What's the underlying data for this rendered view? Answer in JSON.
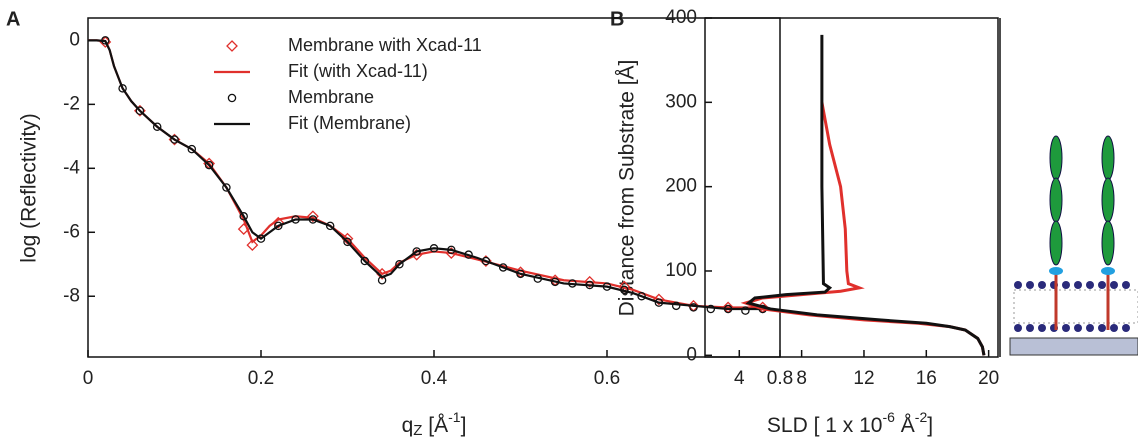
{
  "chart_data": [
    {
      "type": "line",
      "panel": "A",
      "ylabel": "log (Reflectivity)",
      "xlabel": {
        "text": "q",
        "sub": "Z",
        "unit": " [Å",
        "sup": "-1",
        "end": "]"
      },
      "xlim": [
        0,
        0.8
      ],
      "xticks": [
        0,
        0.2,
        0.4,
        0.6,
        0.8
      ],
      "ylim": [
        -9.9,
        0.7
      ],
      "yticks": [
        0,
        -2,
        -4,
        -6,
        -8
      ],
      "legend": "upper right",
      "series": [
        {
          "name": "Membrane with Xcad-11",
          "color": "#e0302c",
          "style": "markers",
          "marker": "diamond",
          "x": [
            0.02,
            0.06,
            0.1,
            0.14,
            0.18,
            0.19,
            0.22,
            0.26,
            0.3,
            0.34,
            0.38,
            0.42,
            0.46,
            0.5,
            0.54,
            0.58,
            0.62,
            0.66,
            0.7,
            0.74,
            0.78
          ],
          "values": [
            -0.05,
            -2.2,
            -3.1,
            -3.85,
            -5.9,
            -6.4,
            -5.7,
            -5.5,
            -6.2,
            -7.3,
            -6.7,
            -6.65,
            -6.9,
            -7.25,
            -7.5,
            -7.55,
            -7.7,
            -8.1,
            -8.3,
            -8.35,
            -8.35
          ]
        },
        {
          "name": "Fit (with Xcad-11)",
          "color": "#e0302c",
          "style": "line",
          "x": [
            0,
            0.01,
            0.02,
            0.025,
            0.03,
            0.04,
            0.05,
            0.06,
            0.08,
            0.1,
            0.12,
            0.14,
            0.16,
            0.18,
            0.19,
            0.2,
            0.21,
            0.22,
            0.24,
            0.26,
            0.28,
            0.3,
            0.32,
            0.34,
            0.35,
            0.36,
            0.38,
            0.4,
            0.42,
            0.45,
            0.5,
            0.55,
            0.6,
            0.63,
            0.66,
            0.7,
            0.74,
            0.78
          ],
          "values": [
            0,
            0,
            -0.02,
            -0.3,
            -0.8,
            -1.5,
            -1.9,
            -2.2,
            -2.7,
            -3.1,
            -3.4,
            -3.85,
            -4.6,
            -5.6,
            -6.3,
            -6.1,
            -5.8,
            -5.6,
            -5.5,
            -5.55,
            -5.8,
            -6.2,
            -6.8,
            -7.3,
            -7.2,
            -6.95,
            -6.7,
            -6.6,
            -6.65,
            -6.85,
            -7.2,
            -7.5,
            -7.6,
            -7.8,
            -8.1,
            -8.3,
            -8.35,
            -8.35
          ]
        },
        {
          "name": "Membrane",
          "color": "#111111",
          "style": "markers",
          "marker": "circle",
          "x": [
            0.02,
            0.04,
            0.06,
            0.08,
            0.1,
            0.12,
            0.14,
            0.16,
            0.18,
            0.2,
            0.22,
            0.24,
            0.26,
            0.28,
            0.3,
            0.32,
            0.34,
            0.36,
            0.38,
            0.4,
            0.42,
            0.44,
            0.46,
            0.48,
            0.5,
            0.52,
            0.54,
            0.56,
            0.58,
            0.6,
            0.62,
            0.64,
            0.66,
            0.68,
            0.7,
            0.72,
            0.74,
            0.76,
            0.78
          ],
          "values": [
            0,
            -1.5,
            -2.2,
            -2.7,
            -3.1,
            -3.4,
            -3.9,
            -4.6,
            -5.5,
            -6.2,
            -5.8,
            -5.6,
            -5.6,
            -5.8,
            -6.3,
            -6.9,
            -7.5,
            -7.0,
            -6.6,
            -6.5,
            -6.55,
            -6.7,
            -6.9,
            -7.1,
            -7.3,
            -7.45,
            -7.55,
            -7.6,
            -7.65,
            -7.7,
            -7.8,
            -8.0,
            -8.2,
            -8.3,
            -8.35,
            -8.4,
            -8.4,
            -8.45,
            -8.4
          ]
        },
        {
          "name": "Fit (Membrane)",
          "color": "#111111",
          "style": "line",
          "x": [
            0,
            0.01,
            0.02,
            0.025,
            0.03,
            0.04,
            0.05,
            0.06,
            0.08,
            0.1,
            0.12,
            0.14,
            0.16,
            0.18,
            0.19,
            0.2,
            0.21,
            0.22,
            0.24,
            0.26,
            0.28,
            0.3,
            0.32,
            0.34,
            0.35,
            0.36,
            0.38,
            0.4,
            0.42,
            0.45,
            0.5,
            0.55,
            0.6,
            0.63,
            0.66,
            0.7,
            0.74,
            0.78
          ],
          "values": [
            0,
            0,
            -0.02,
            -0.3,
            -0.8,
            -1.5,
            -1.9,
            -2.2,
            -2.7,
            -3.1,
            -3.4,
            -3.9,
            -4.6,
            -5.5,
            -6.0,
            -6.2,
            -6.0,
            -5.8,
            -5.6,
            -5.6,
            -5.8,
            -6.3,
            -6.9,
            -7.4,
            -7.3,
            -7.0,
            -6.6,
            -6.5,
            -6.55,
            -6.8,
            -7.3,
            -7.6,
            -7.7,
            -7.9,
            -8.2,
            -8.3,
            -8.4,
            -8.4
          ]
        }
      ]
    },
    {
      "type": "profile",
      "panel": "B",
      "ylabel": "Distance from Substrate [Å]",
      "xlabel": {
        "text": "SLD [ 1 x 10",
        "sup": "-6",
        "unit": " Å",
        "sup2": "-2",
        "end": "]"
      },
      "xlim": [
        1.8,
        20.6
      ],
      "xticks": [
        4,
        8,
        12,
        16,
        20
      ],
      "ylim": [
        -2,
        400
      ],
      "yticks": [
        0,
        100,
        200,
        300,
        400
      ],
      "series": [
        {
          "color": "#e0302c",
          "x": [
            9.3,
            9.8,
            10.5,
            10.8,
            10.9,
            11.0,
            11.7,
            10.5,
            8,
            5.5,
            4.4,
            5.5,
            8.5,
            12,
            15.5,
            17.5,
            18.5,
            19.3,
            19.6,
            19.7
          ],
          "y": [
            300,
            250,
            200,
            150,
            100,
            85,
            80,
            76,
            72,
            68,
            62,
            55,
            48,
            42,
            38,
            34,
            30,
            20,
            10,
            0
          ]
        },
        {
          "color": "#111111",
          "x": [
            9.3,
            9.3,
            9.4,
            9.8,
            9.5,
            7,
            5,
            4.6,
            6,
            9,
            13,
            16,
            17.5,
            18.5,
            19.3,
            19.6,
            19.7
          ],
          "y": [
            380,
            200,
            85,
            80,
            75,
            72,
            68,
            62,
            55,
            48,
            42,
            38,
            34,
            30,
            20,
            10,
            0
          ]
        }
      ]
    }
  ]
}
